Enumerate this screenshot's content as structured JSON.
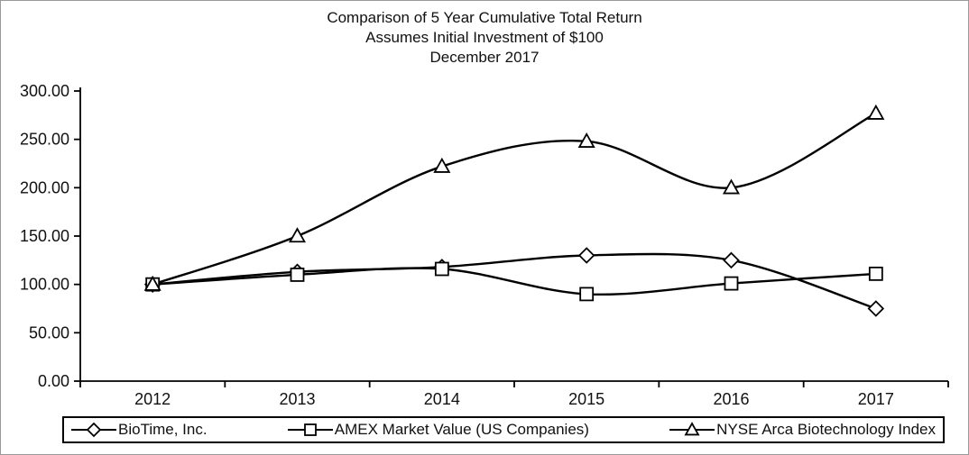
{
  "title": {
    "line1": "Comparison of 5 Year Cumulative Total Return",
    "line2": "Assumes Initial Investment of $100",
    "line3": "December 2017"
  },
  "chart_data": {
    "type": "line",
    "categories": [
      "2012",
      "2013",
      "2014",
      "2015",
      "2016",
      "2017"
    ],
    "series": [
      {
        "name": "BioTime, Inc.",
        "marker": "diamond",
        "values": [
          100,
          113,
          118,
          130,
          125,
          75
        ]
      },
      {
        "name": "AMEX Market Value (US Companies)",
        "marker": "square",
        "values": [
          100,
          110,
          116,
          90,
          101,
          111
        ]
      },
      {
        "name": "NYSE Arca Biotechnology Index",
        "marker": "triangle",
        "values": [
          100,
          150,
          222,
          248,
          200,
          277
        ]
      }
    ],
    "ylim": [
      0,
      300
    ],
    "y_tick_step": 50,
    "y_tick_labels": [
      "0.00",
      "50.00",
      "100.00",
      "150.00",
      "200.00",
      "250.00",
      "300.00"
    ],
    "grid": false,
    "legend_position": "bottom",
    "line_color": "#000000",
    "marker_fill": "#ffffff",
    "axis_color": "#000000",
    "smooth_lines": true
  }
}
